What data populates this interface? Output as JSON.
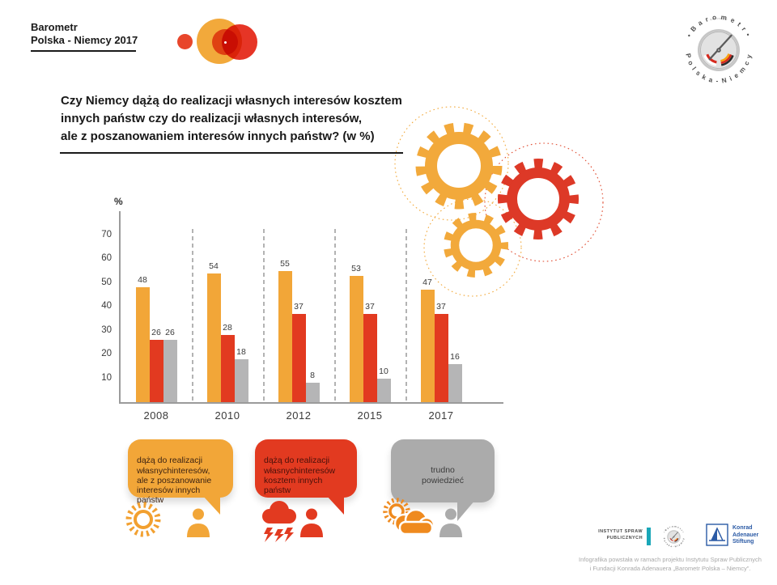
{
  "header": {
    "brand_line1": "Barometr",
    "brand_line2": "Polska - Niemcy 2017",
    "badge_top_text": "• B a r o m e t r •",
    "badge_bottom_text": "P o l s k a - N i e m c y"
  },
  "question": {
    "line1": "Czy Niemcy dążą do realizacji własnych interesów kosztem",
    "line2": "innych państw czy do realizacji własnych interesów,",
    "line3": "ale z poszanowaniem interesów innych państw? (w %)"
  },
  "chart_data": {
    "type": "bar",
    "unit_label": "%",
    "categories": [
      "2008",
      "2010",
      "2012",
      "2015",
      "2017"
    ],
    "series": [
      {
        "name": "dążą do realizacji własnychinteresów, ale z poszanowanie interesów innych państw",
        "color": "#F2A638",
        "values": [
          48,
          54,
          55,
          53,
          47
        ]
      },
      {
        "name": "dążą do realizacji własnychinteresów kosztem innych państw",
        "color": "#E23A20",
        "values": [
          26,
          28,
          37,
          37,
          37
        ]
      },
      {
        "name": "trudno powiedzieć",
        "color": "#B5B5B6",
        "values": [
          26,
          18,
          8,
          10,
          16
        ]
      }
    ],
    "y_ticks": [
      70,
      60,
      50,
      40,
      30,
      20,
      10
    ],
    "ylim": [
      0,
      80
    ],
    "grid": "dashed vertical separators between year groups",
    "legend_position": "bottom"
  },
  "legend": {
    "items": [
      {
        "text": "dążą do realizacji\nwłasnychinteresów,\nale z poszanowanie\ninteresów innych\npaństw",
        "color": "#F2A638",
        "icon": "sun-icon + person-icon"
      },
      {
        "text": "dążą do realizacji\nwłasnychinteresów\nkosztem innych\npaństw",
        "color": "#E23A20",
        "icon": "storm-cloud-icon + person-icon"
      },
      {
        "text": "trudno\npowiedzieć",
        "color": "#ABABAB",
        "icon": "sun-behind-cloud-icon + person-icon"
      }
    ]
  },
  "footer": {
    "isp_logo_line1": "INSTYTUT SPRAW",
    "isp_logo_line2": "PUBLICZNYCH",
    "kas_logo_line1": "Konrad",
    "kas_logo_line2": "Adenauer",
    "kas_logo_line3": "Stiftung",
    "credit_line1": "Infografika powstała w ramach projektu Instytutu Spraw Publicznych",
    "credit_line2": "i Fundacji Konrada Adenauera „Barometr Polska – Niemcy”."
  }
}
